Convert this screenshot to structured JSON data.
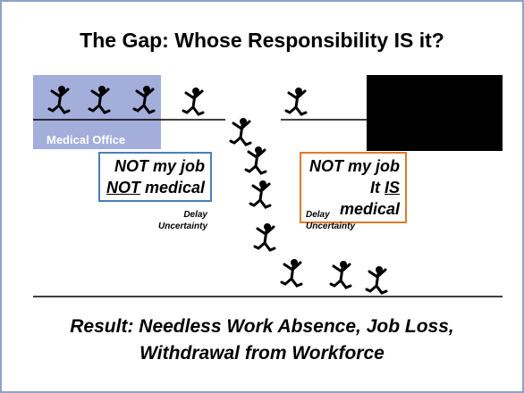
{
  "title": "The Gap: Whose Responsibility IS it?",
  "left_office": {
    "label": "Medical Office"
  },
  "left_box": {
    "line1": "NOT my job",
    "line2": {
      "underlined": "NOT",
      "rest": " medical"
    }
  },
  "left_notes": [
    "Delay",
    "Uncertainty"
  ],
  "right_box": {
    "line1": "NOT my job",
    "line2": {
      "before": "It ",
      "underlined": "IS",
      "rest": " medical"
    }
  },
  "right_notes": [
    "Delay",
    "Uncertainty"
  ],
  "result": [
    "Result:  Needless Work Absence, Job Loss,",
    "Withdrawal from Workforce"
  ]
}
